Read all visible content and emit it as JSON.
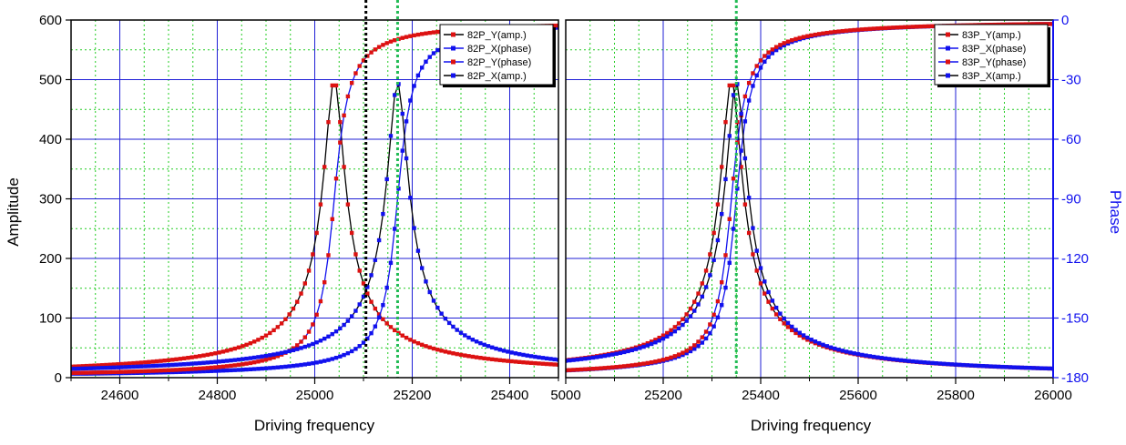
{
  "colors": {
    "amp_y": "#dd1111",
    "phase_x": "#1111ee",
    "curve_line": "#000000",
    "grid_major": "#1f1fd6",
    "grid_minor": "#22cc22",
    "marker_black": "#000000",
    "marker_green": "#22bb55",
    "right_axis": "#1111ee"
  },
  "chart_data": [
    {
      "type": "line",
      "panel": "left",
      "xlabel": "Driving frequency",
      "ylabel": "Amplitude",
      "xlim": [
        24500,
        25500
      ],
      "ylim": [
        0,
        600
      ],
      "y2lim": [
        -180,
        0
      ],
      "xticks": [
        "24600",
        "24800",
        "25000",
        "25200",
        "25400"
      ],
      "yticks": [
        "0",
        "100",
        "200",
        "300",
        "400",
        "500",
        "600"
      ],
      "grid": true,
      "legend_position": "top-right",
      "vertical_markers": [
        {
          "x": 25105,
          "style": "black-dotted"
        },
        {
          "x": 25170,
          "style": "green-dotted"
        }
      ],
      "series": [
        {
          "name": "82P_Y(amp.)",
          "kind": "amplitude",
          "axis": "left",
          "f0": 25040,
          "gamma": 40,
          "peak": 500,
          "base": 0,
          "color": "amp_y",
          "line": "curve_line"
        },
        {
          "name": "82P_X(phase)",
          "kind": "phase",
          "axis": "right",
          "f0": 25170,
          "gamma": 40,
          "color": "phase_x",
          "line": "phase_x"
        },
        {
          "name": "82P_Y(phase)",
          "kind": "phase",
          "axis": "right",
          "f0": 25040,
          "gamma": 40,
          "color": "amp_y",
          "line": "phase_x"
        },
        {
          "name": "82P_X(amp.)",
          "kind": "amplitude",
          "axis": "left",
          "f0": 25170,
          "gamma": 40,
          "peak": 495,
          "base": 0,
          "color": "phase_x",
          "line": "curve_line"
        }
      ]
    },
    {
      "type": "line",
      "panel": "right",
      "xlabel": "Driving frequency",
      "y2label": "Phase",
      "xlim": [
        25000,
        26000
      ],
      "ylim": [
        0,
        600
      ],
      "y2lim": [
        -180,
        0
      ],
      "xticks": [
        "5000",
        "25200",
        "25400",
        "25600",
        "25800",
        "26000"
      ],
      "y2ticks": [
        "0",
        "-30",
        "-60",
        "-90",
        "-120",
        "-150",
        "-180"
      ],
      "grid": true,
      "legend_position": "top-right",
      "vertical_markers": [
        {
          "x": 25350,
          "style": "green-dotted"
        }
      ],
      "series": [
        {
          "name": "83P_Y(amp.)",
          "kind": "amplitude",
          "axis": "left",
          "f0": 25340,
          "gamma": 40,
          "peak": 500,
          "base": 0,
          "color": "amp_y",
          "line": "curve_line"
        },
        {
          "name": "83P_X(phase)",
          "kind": "phase",
          "axis": "right",
          "f0": 25350,
          "gamma": 40,
          "color": "phase_x",
          "line": "phase_x"
        },
        {
          "name": "83P_Y(phase)",
          "kind": "phase",
          "axis": "right",
          "f0": 25340,
          "gamma": 40,
          "color": "amp_y",
          "line": "phase_x"
        },
        {
          "name": "83P_X(amp.)",
          "kind": "amplitude",
          "axis": "left",
          "f0": 25350,
          "gamma": 40,
          "peak": 495,
          "base": 0,
          "color": "phase_x",
          "line": "curve_line"
        }
      ]
    }
  ]
}
